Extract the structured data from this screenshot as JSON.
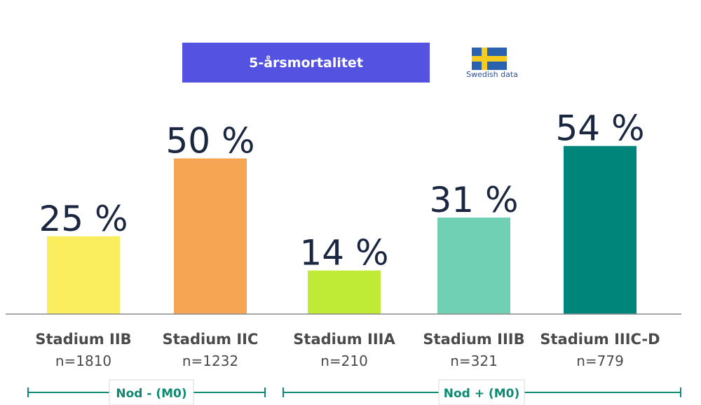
{
  "title": "5-årsmortalitet",
  "flag": {
    "icon": "sweden-flag-icon",
    "caption": "Swedish data",
    "blue": "#2a62b0",
    "yellow": "#f5cb1f"
  },
  "chart_data": {
    "type": "bar",
    "ylim": [
      0,
      60
    ],
    "categories": [
      "Stadium IIB",
      "Stadium IIC",
      "Stadium IIIA",
      "Stadium IIIB",
      "Stadium IIIC-D"
    ],
    "n_labels": [
      "n=1810",
      "n=1232",
      "n=210",
      "n=321",
      "n=779"
    ],
    "values": [
      25,
      50,
      14,
      31,
      54
    ],
    "value_labels": [
      "25 %",
      "50 %",
      "14 %",
      "31 %",
      "54 %"
    ],
    "colors": [
      "#fbee5e",
      "#f6a552",
      "#bfea36",
      "#6fd0b4",
      "#00857a"
    ],
    "groups": [
      {
        "label": "Nod - (M0)",
        "members": [
          0,
          1
        ]
      },
      {
        "label": "Nod + (M0)",
        "members": [
          2,
          3,
          4
        ]
      }
    ],
    "grid": false
  }
}
